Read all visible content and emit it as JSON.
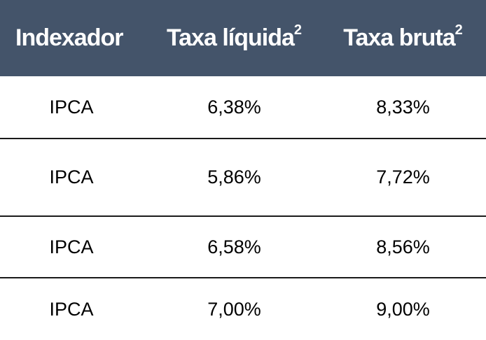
{
  "table": {
    "headers": [
      {
        "label": "Indexador",
        "sup": ""
      },
      {
        "label": "Taxa líquida",
        "sup": "2"
      },
      {
        "label": "Taxa bruta",
        "sup": "2"
      }
    ],
    "rows": [
      {
        "indexador": "IPCA",
        "taxa_liquida": "6,38%",
        "taxa_bruta": "8,33%"
      },
      {
        "indexador": "IPCA",
        "taxa_liquida": "5,86%",
        "taxa_bruta": "7,72%"
      },
      {
        "indexador": "IPCA",
        "taxa_liquida": "6,58%",
        "taxa_bruta": "8,56%"
      },
      {
        "indexador": "IPCA",
        "taxa_liquida": "7,00%",
        "taxa_bruta": "9,00%"
      }
    ]
  },
  "colors": {
    "header_background": "#44546a",
    "header_text": "#ffffff",
    "row_divider": "#1a1a1a"
  }
}
